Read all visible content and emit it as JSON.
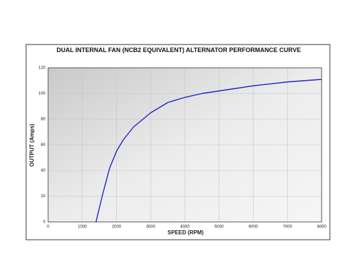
{
  "chart_data": {
    "type": "line",
    "title": "DUAL INTERNAL FAN (NCB2 EQUIVALENT) ALTERNATOR PERFORMANCE CURVE",
    "x_label": "SPEED (RPM)",
    "y_label": "OUTPUT (Amps)",
    "x": [
      1400,
      1600,
      1800,
      2000,
      2200,
      2500,
      3000,
      3500,
      4000,
      4500,
      5000,
      5500,
      6000,
      6500,
      7000,
      7500,
      8000
    ],
    "series": [
      {
        "name": "Output",
        "color": "#1f1fd0",
        "values": [
          0,
          22,
          42,
          55,
          64,
          74,
          85,
          93,
          97,
          100,
          102,
          104,
          106,
          107.5,
          109,
          110,
          111
        ]
      }
    ],
    "xlim": [
      0,
      8000
    ],
    "xticks": [
      0,
      1000,
      2000,
      3000,
      4000,
      5000,
      6000,
      7000,
      8000
    ],
    "ylim": [
      0,
      120
    ],
    "yticks": [
      0,
      20,
      40,
      60,
      80,
      100,
      120
    ],
    "grid": true
  }
}
